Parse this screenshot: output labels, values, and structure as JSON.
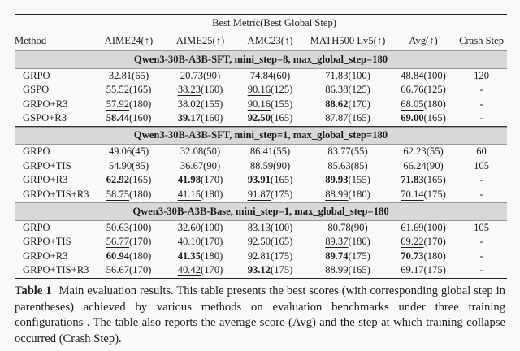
{
  "table": {
    "top_header": "Best Metric(Best Global Step)",
    "columns": [
      "Method",
      "AIME24(↑)",
      "AIME25(↑)",
      "AMC23(↑)",
      "MATH500 Lv5(↑)",
      "Avg(↑)",
      "Crash Step"
    ],
    "band_color": "#d8d8d8",
    "sections": [
      {
        "title": "Qwen3-30B-A3B-SFT, mini_step=8, max_global_step=180",
        "rows": [
          {
            "method": "GRPO",
            "cells": [
              [
                "32.81",
                "(65)",
                "p"
              ],
              [
                "20.73",
                "(90)",
                "p"
              ],
              [
                "74.84",
                "(60)",
                "p"
              ],
              [
                "71.83",
                "(100)",
                "p"
              ],
              [
                "48.84",
                "(100)",
                "p"
              ]
            ],
            "crash": "120"
          },
          {
            "method": "GSPO",
            "cells": [
              [
                "55.52",
                "(165)",
                "p"
              ],
              [
                "38.23",
                "(160)",
                "u"
              ],
              [
                "90.16",
                "(125)",
                "u"
              ],
              [
                "86.38",
                "(125)",
                "p"
              ],
              [
                "66.76",
                "(125)",
                "p"
              ]
            ],
            "crash": "-"
          },
          {
            "method": "GRPO+R3",
            "cells": [
              [
                "57.92",
                "(180)",
                "u"
              ],
              [
                "38.02",
                "(155)",
                "p"
              ],
              [
                "90.16",
                "(155)",
                "u"
              ],
              [
                "88.62",
                "(170)",
                "b"
              ],
              [
                "68.05",
                "(180)",
                "u"
              ]
            ],
            "crash": "-"
          },
          {
            "method": "GSPO+R3",
            "cells": [
              [
                "58.44",
                "(160)",
                "b"
              ],
              [
                "39.17",
                "(160)",
                "b"
              ],
              [
                "92.50",
                "(165)",
                "b"
              ],
              [
                "87.87",
                "(165)",
                "u"
              ],
              [
                "69.00",
                "(165)",
                "b"
              ]
            ],
            "crash": "-"
          }
        ]
      },
      {
        "title": "Qwen3-30B-A3B-SFT, mini_step=1, max_global_step=180",
        "rows": [
          {
            "method": "GRPO",
            "cells": [
              [
                "49.06",
                "(45)",
                "p"
              ],
              [
                "32.08",
                "(50)",
                "p"
              ],
              [
                "86.41",
                "(55)",
                "p"
              ],
              [
                "83.77",
                "(55)",
                "p"
              ],
              [
                "62.23",
                "(55)",
                "p"
              ]
            ],
            "crash": "60"
          },
          {
            "method": "GRPO+TIS",
            "cells": [
              [
                "54.90",
                "(85)",
                "p"
              ],
              [
                "36.67",
                "(90)",
                "p"
              ],
              [
                "88.59",
                "(90)",
                "p"
              ],
              [
                "85.63",
                "(85)",
                "p"
              ],
              [
                "66.24",
                "(90)",
                "p"
              ]
            ],
            "crash": "105"
          },
          {
            "method": "GRPO+R3",
            "cells": [
              [
                "62.92",
                "(165)",
                "b"
              ],
              [
                "41.98",
                "(170)",
                "b"
              ],
              [
                "93.91",
                "(165)",
                "b"
              ],
              [
                "89.93",
                "(155)",
                "b"
              ],
              [
                "71.83",
                "(165)",
                "b"
              ]
            ],
            "crash": "-"
          },
          {
            "method": "GRPO+TIS+R3",
            "cells": [
              [
                "58.75",
                "(180)",
                "u"
              ],
              [
                "41.15",
                "(180)",
                "u"
              ],
              [
                "91.87",
                "(175)",
                "u"
              ],
              [
                "88.99",
                "(180)",
                "u"
              ],
              [
                "70.14",
                "(175)",
                "u"
              ]
            ],
            "crash": "-"
          }
        ]
      },
      {
        "title": "Qwen3-30B-A3B-Base, mini_step=1, max_global_step=180",
        "rows": [
          {
            "method": "GRPO",
            "cells": [
              [
                "50.63",
                "(100)",
                "p"
              ],
              [
                "32.60",
                "(100)",
                "p"
              ],
              [
                "83.13",
                "(100)",
                "p"
              ],
              [
                "80.78",
                "(90)",
                "p"
              ],
              [
                "61.69",
                "(100)",
                "p"
              ]
            ],
            "crash": "105"
          },
          {
            "method": "GRPO+TIS",
            "cells": [
              [
                "56.77",
                "(170)",
                "u"
              ],
              [
                "40.10",
                "(170)",
                "p"
              ],
              [
                "92.50",
                "(165)",
                "p"
              ],
              [
                "89.37",
                "(180)",
                "u"
              ],
              [
                "69.22",
                "(170)",
                "u"
              ]
            ],
            "crash": "-"
          },
          {
            "method": "GRPO+R3",
            "cells": [
              [
                "60.94",
                "(180)",
                "b"
              ],
              [
                "41.35",
                "(180)",
                "b"
              ],
              [
                "92.81",
                "(175)",
                "u"
              ],
              [
                "89.74",
                "(175)",
                "b"
              ],
              [
                "70.73",
                "(180)",
                "b"
              ]
            ],
            "crash": "-"
          },
          {
            "method": "GRPO+TIS+R3",
            "cells": [
              [
                "56.67",
                "(170)",
                "p"
              ],
              [
                "40.42",
                "(170)",
                "u"
              ],
              [
                "93.12",
                "(175)",
                "b"
              ],
              [
                "88.99",
                "(165)",
                "p"
              ],
              [
                "69.17",
                "(175)",
                "p"
              ]
            ],
            "crash": "-"
          }
        ]
      }
    ]
  },
  "caption": {
    "label": "Table 1",
    "text": "Main evaluation results. This table presents the best scores (with corresponding global step in parentheses) achieved by various methods on evaluation benchmarks under three training configurations . The table also reports the average score (Avg) and the step at which training collapse occurred (Crash Step)."
  }
}
